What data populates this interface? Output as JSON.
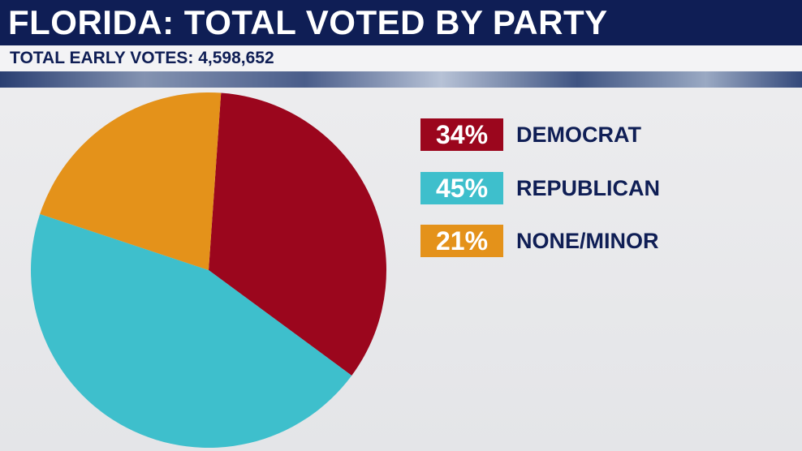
{
  "header": {
    "title": "FLORIDA: TOTAL VOTED BY PARTY",
    "subtitle": "TOTAL EARLY VOTES: 4,598,652"
  },
  "colors": {
    "header_bg": "#0f1e55",
    "democrat": "#9b061d",
    "republican": "#3ebfcc",
    "none_minor": "#e4921a"
  },
  "chart_data": {
    "type": "pie",
    "title": "FLORIDA: TOTAL VOTED BY PARTY",
    "subtitle": "TOTAL EARLY VOTES: 4,598,652",
    "slices": [
      {
        "label": "DEMOCRAT",
        "value": 34,
        "display": "34%",
        "color": "#9b061d"
      },
      {
        "label": "REPUBLICAN",
        "value": 45,
        "display": "45%",
        "color": "#3ebfcc"
      },
      {
        "label": "NONE/MINOR",
        "value": 21,
        "display": "21%",
        "color": "#e4921a"
      }
    ],
    "legend_position": "right"
  }
}
